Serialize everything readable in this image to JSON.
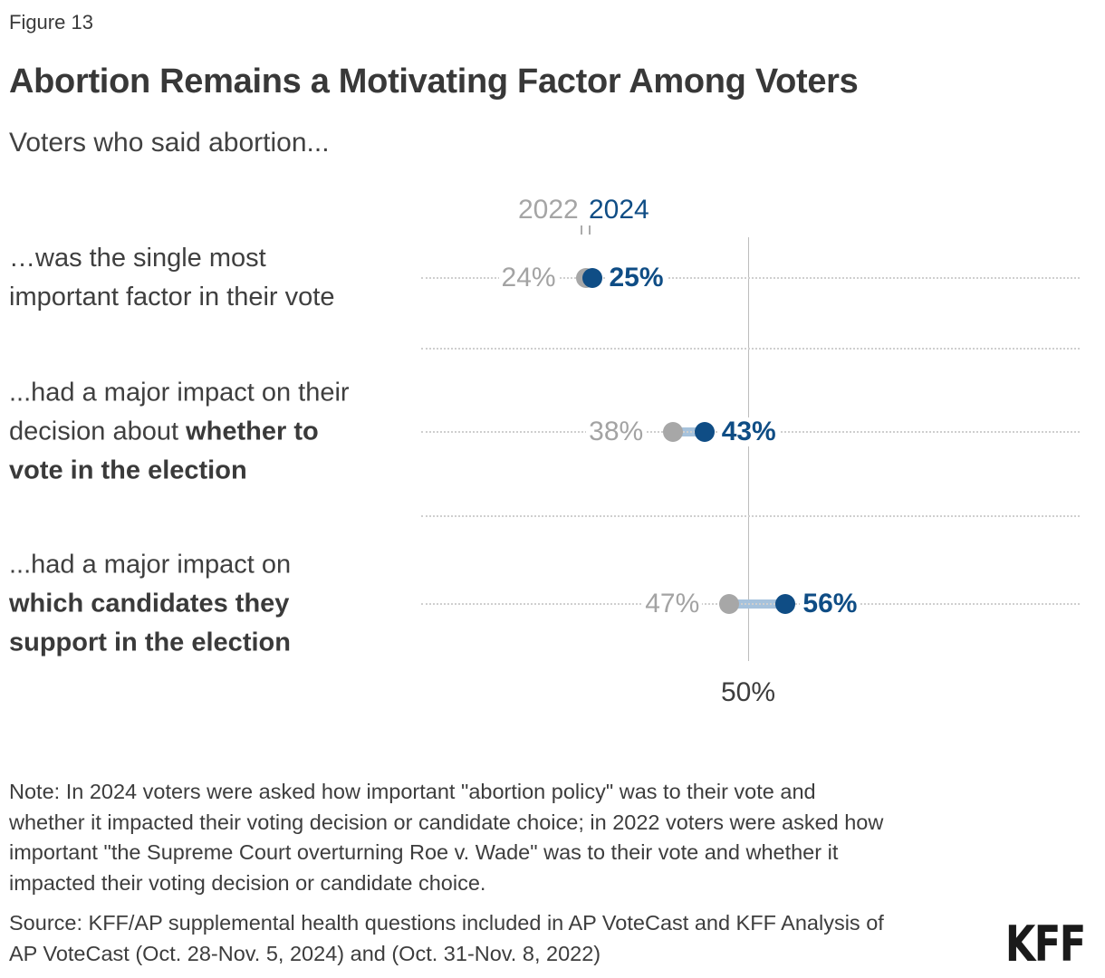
{
  "header": {
    "figure_label": "Figure 13",
    "title": "Abortion Remains a Motivating Factor Among Voters",
    "subtitle": "Voters who said abortion..."
  },
  "legend": {
    "series1": "2022",
    "series2": "2024"
  },
  "colors": {
    "series_2022": "#a7a7a7",
    "series_2024": "#0f4d85",
    "connector": "#a6c2dc",
    "axis_line": "#bdbdbd",
    "gridline": "#cfcfcf",
    "text_dark": "#3a3a3a"
  },
  "chart_data": {
    "type": "scatter",
    "subtype": "dumbbell",
    "title": "Abortion Remains a Motivating Factor Among Voters",
    "subtitle": "Voters who said abortion...",
    "legend_position": "top",
    "grid": "dotted-horizontal",
    "x_axis": {
      "ticks": [
        50
      ],
      "tick_labels": [
        "50%"
      ],
      "reference_line": 50
    },
    "categories": [
      "…was the single most important factor in their vote",
      "...had a major impact on their decision about whether to vote in the election",
      "...had a major impact on which candidates they support in the election"
    ],
    "series": [
      {
        "name": "2022",
        "values": [
          24,
          38,
          47
        ]
      },
      {
        "name": "2024",
        "values": [
          25,
          43,
          56
        ]
      }
    ],
    "rows": [
      {
        "v2022": 24,
        "v2024": 25,
        "label_2022": "24%",
        "label_2024": "25%",
        "label_lines": [
          [
            {
              "text": "…was the single most"
            }
          ],
          [
            {
              "text": "important factor in their vote"
            }
          ]
        ]
      },
      {
        "v2022": 38,
        "v2024": 43,
        "label_2022": "38%",
        "label_2024": "43%",
        "label_lines": [
          [
            {
              "text": "...had a major impact on their"
            }
          ],
          [
            {
              "text": "decision about "
            },
            {
              "text": "whether to",
              "bold": true
            }
          ],
          [
            {
              "text": "vote in the election",
              "bold": true
            }
          ]
        ]
      },
      {
        "v2022": 47,
        "v2024": 56,
        "label_2022": "47%",
        "label_2024": "56%",
        "label_lines": [
          [
            {
              "text": "...had a major impact on"
            }
          ],
          [
            {
              "text": "which candidates they",
              "bold": true
            }
          ],
          [
            {
              "text": "support in the election",
              "bold": true
            }
          ]
        ]
      }
    ]
  },
  "axis_tick_label": "50%",
  "note_lines": [
    "Note: In 2024 voters were asked how important \"abortion policy\" was to their vote and",
    "whether it impacted their voting decision or candidate choice; in 2022 voters were asked how",
    "important \"the Supreme Court overturning Roe v. Wade\" was to their vote and whether it",
    "impacted their voting decision or candidate choice."
  ],
  "source_lines": [
    "Source: KFF/AP supplemental health questions included in AP VoteCast and KFF Analysis of",
    "AP VoteCast (Oct. 28-Nov. 5, 2024) and (Oct. 31-Nov. 8, 2022)"
  ],
  "logo_text": "KFF"
}
